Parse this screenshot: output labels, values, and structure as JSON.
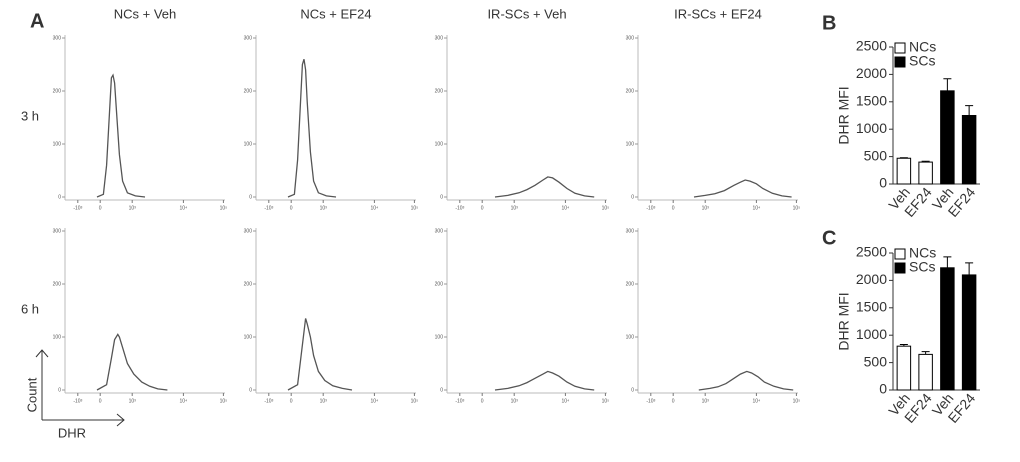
{
  "labels": {
    "panel_a": "A",
    "row_1": "3 h",
    "row_2": "6 h",
    "count_axis": "Count",
    "dhr_axis": "DHR"
  },
  "chart_data": [
    {
      "type": "line",
      "title": "NCs + Veh",
      "xlim": [
        0,
        100
      ],
      "ylim": [
        0,
        300
      ],
      "yticks": [
        0,
        100,
        200,
        300
      ],
      "xticks": [
        {
          "value": 8,
          "label": "-10³"
        },
        {
          "value": 22,
          "label": "0"
        },
        {
          "value": 42,
          "label": "10³"
        },
        {
          "value": 74,
          "label": "10⁴"
        },
        {
          "value": 99,
          "label": "10⁵"
        }
      ],
      "color": "#555555",
      "x": [
        20,
        24,
        26,
        28,
        29,
        30,
        31,
        32,
        34,
        36,
        39,
        44,
        50
      ],
      "values": [
        0,
        5,
        60,
        170,
        225,
        230,
        215,
        170,
        80,
        30,
        8,
        2,
        0
      ]
    },
    {
      "type": "line",
      "title": "NCs + EF24",
      "xlim": [
        0,
        100
      ],
      "ylim": [
        0,
        300
      ],
      "yticks": [
        0,
        100,
        200,
        300
      ],
      "xticks": [
        {
          "value": 8,
          "label": "-10³"
        },
        {
          "value": 22,
          "label": "0"
        },
        {
          "value": 42,
          "label": "10³"
        },
        {
          "value": 74,
          "label": "10⁴"
        },
        {
          "value": 99,
          "label": "10⁵"
        }
      ],
      "color": "#555555",
      "x": [
        20,
        24,
        26,
        28,
        29,
        30,
        31,
        32,
        34,
        36,
        39,
        44,
        50
      ],
      "values": [
        0,
        5,
        70,
        190,
        250,
        260,
        240,
        180,
        85,
        30,
        8,
        2,
        0
      ]
    },
    {
      "type": "line",
      "title": "IR-SCs + Veh",
      "xlim": [
        0,
        100
      ],
      "ylim": [
        0,
        300
      ],
      "yticks": [
        0,
        100,
        200,
        300
      ],
      "xticks": [
        {
          "value": 8,
          "label": "-10³"
        },
        {
          "value": 22,
          "label": "0"
        },
        {
          "value": 42,
          "label": "10³"
        },
        {
          "value": 74,
          "label": "10⁴"
        },
        {
          "value": 99,
          "label": "10⁵"
        }
      ],
      "color": "#555555",
      "x": [
        30,
        38,
        45,
        50,
        55,
        60,
        63,
        66,
        70,
        75,
        80,
        86,
        92
      ],
      "values": [
        0,
        3,
        8,
        14,
        22,
        32,
        38,
        36,
        28,
        16,
        7,
        2,
        0
      ]
    },
    {
      "type": "line",
      "title": "IR-SCs + EF24",
      "xlim": [
        0,
        100
      ],
      "ylim": [
        0,
        300
      ],
      "yticks": [
        0,
        100,
        200,
        300
      ],
      "xticks": [
        {
          "value": 8,
          "label": "-10³"
        },
        {
          "value": 22,
          "label": "0"
        },
        {
          "value": 42,
          "label": "10³"
        },
        {
          "value": 74,
          "label": "10⁴"
        },
        {
          "value": 99,
          "label": "10⁵"
        }
      ],
      "color": "#555555",
      "x": [
        35,
        42,
        48,
        54,
        60,
        64,
        67,
        70,
        74,
        78,
        84,
        90,
        96
      ],
      "values": [
        0,
        3,
        6,
        12,
        22,
        28,
        32,
        30,
        25,
        16,
        7,
        2,
        0
      ]
    },
    {
      "type": "line",
      "xlim": [
        0,
        100
      ],
      "ylim": [
        0,
        300
      ],
      "yticks": [
        0,
        100,
        200,
        300
      ],
      "xticks": [
        {
          "value": 8,
          "label": "-10³"
        },
        {
          "value": 22,
          "label": "0"
        },
        {
          "value": 42,
          "label": "10³"
        },
        {
          "value": 74,
          "label": "10⁴"
        },
        {
          "value": 99,
          "label": "10⁵"
        }
      ],
      "color": "#555555",
      "x": [
        20,
        26,
        29,
        31,
        33,
        34,
        36,
        39,
        43,
        48,
        53,
        58,
        64
      ],
      "values": [
        0,
        10,
        60,
        95,
        105,
        100,
        80,
        50,
        30,
        15,
        7,
        2,
        0
      ]
    },
    {
      "type": "line",
      "xlim": [
        0,
        100
      ],
      "ylim": [
        0,
        300
      ],
      "yticks": [
        0,
        100,
        200,
        300
      ],
      "xticks": [
        {
          "value": 8,
          "label": "-10³"
        },
        {
          "value": 22,
          "label": "0"
        },
        {
          "value": 42,
          "label": "10³"
        },
        {
          "value": 74,
          "label": "10⁴"
        },
        {
          "value": 99,
          "label": "10⁵"
        }
      ],
      "color": "#555555",
      "x": [
        20,
        26,
        28,
        30,
        31,
        32,
        34,
        36,
        39,
        43,
        48,
        54,
        60
      ],
      "values": [
        0,
        10,
        60,
        110,
        135,
        125,
        100,
        65,
        35,
        18,
        8,
        3,
        0
      ]
    },
    {
      "type": "line",
      "xlim": [
        0,
        100
      ],
      "ylim": [
        0,
        300
      ],
      "yticks": [
        0,
        100,
        200,
        300
      ],
      "xticks": [
        {
          "value": 8,
          "label": "-10³"
        },
        {
          "value": 22,
          "label": "0"
        },
        {
          "value": 42,
          "label": "10³"
        },
        {
          "value": 74,
          "label": "10⁴"
        },
        {
          "value": 99,
          "label": "10⁵"
        }
      ],
      "color": "#555555",
      "x": [
        30,
        38,
        45,
        50,
        55,
        60,
        63,
        66,
        70,
        75,
        80,
        86,
        92
      ],
      "values": [
        0,
        3,
        8,
        14,
        22,
        30,
        35,
        32,
        26,
        15,
        7,
        2,
        0
      ]
    },
    {
      "type": "line",
      "xlim": [
        0,
        100
      ],
      "ylim": [
        0,
        300
      ],
      "yticks": [
        0,
        100,
        200,
        300
      ],
      "xticks": [
        {
          "value": 8,
          "label": "-10³"
        },
        {
          "value": 22,
          "label": "0"
        },
        {
          "value": 42,
          "label": "10³"
        },
        {
          "value": 74,
          "label": "10⁴"
        },
        {
          "value": 99,
          "label": "10⁵"
        }
      ],
      "color": "#555555",
      "x": [
        38,
        45,
        50,
        55,
        60,
        64,
        68,
        71,
        75,
        79,
        85,
        91,
        97
      ],
      "values": [
        0,
        3,
        6,
        12,
        22,
        30,
        35,
        32,
        25,
        15,
        7,
        2,
        0
      ]
    },
    {
      "type": "bar",
      "panel_label": "B",
      "ylabel": "DHR MFI",
      "categories": [
        "Veh",
        "EF24",
        "Veh",
        "EF24"
      ],
      "ylim": [
        0,
        2500
      ],
      "yticks": [
        0,
        500,
        1000,
        1500,
        2000,
        2500
      ],
      "series": [
        {
          "name": "NCs",
          "color": "#ffffff",
          "values": [
            470,
            400,
            null,
            null
          ],
          "errors": [
            10,
            15,
            null,
            null
          ]
        },
        {
          "name": "SCs",
          "color": "#000000",
          "values": [
            null,
            null,
            1700,
            1250
          ],
          "errors": [
            null,
            null,
            220,
            180
          ]
        }
      ]
    },
    {
      "type": "bar",
      "panel_label": "C",
      "ylabel": "DHR MFI",
      "categories": [
        "Veh",
        "EF24",
        "Veh",
        "EF24"
      ],
      "ylim": [
        0,
        2500
      ],
      "yticks": [
        0,
        500,
        1000,
        1500,
        2000,
        2500
      ],
      "series": [
        {
          "name": "NCs",
          "color": "#ffffff",
          "values": [
            800,
            650,
            null,
            null
          ],
          "errors": [
            30,
            50,
            null,
            null
          ]
        },
        {
          "name": "SCs",
          "color": "#000000",
          "values": [
            null,
            null,
            2230,
            2100
          ],
          "errors": [
            null,
            null,
            200,
            220
          ]
        }
      ]
    }
  ]
}
